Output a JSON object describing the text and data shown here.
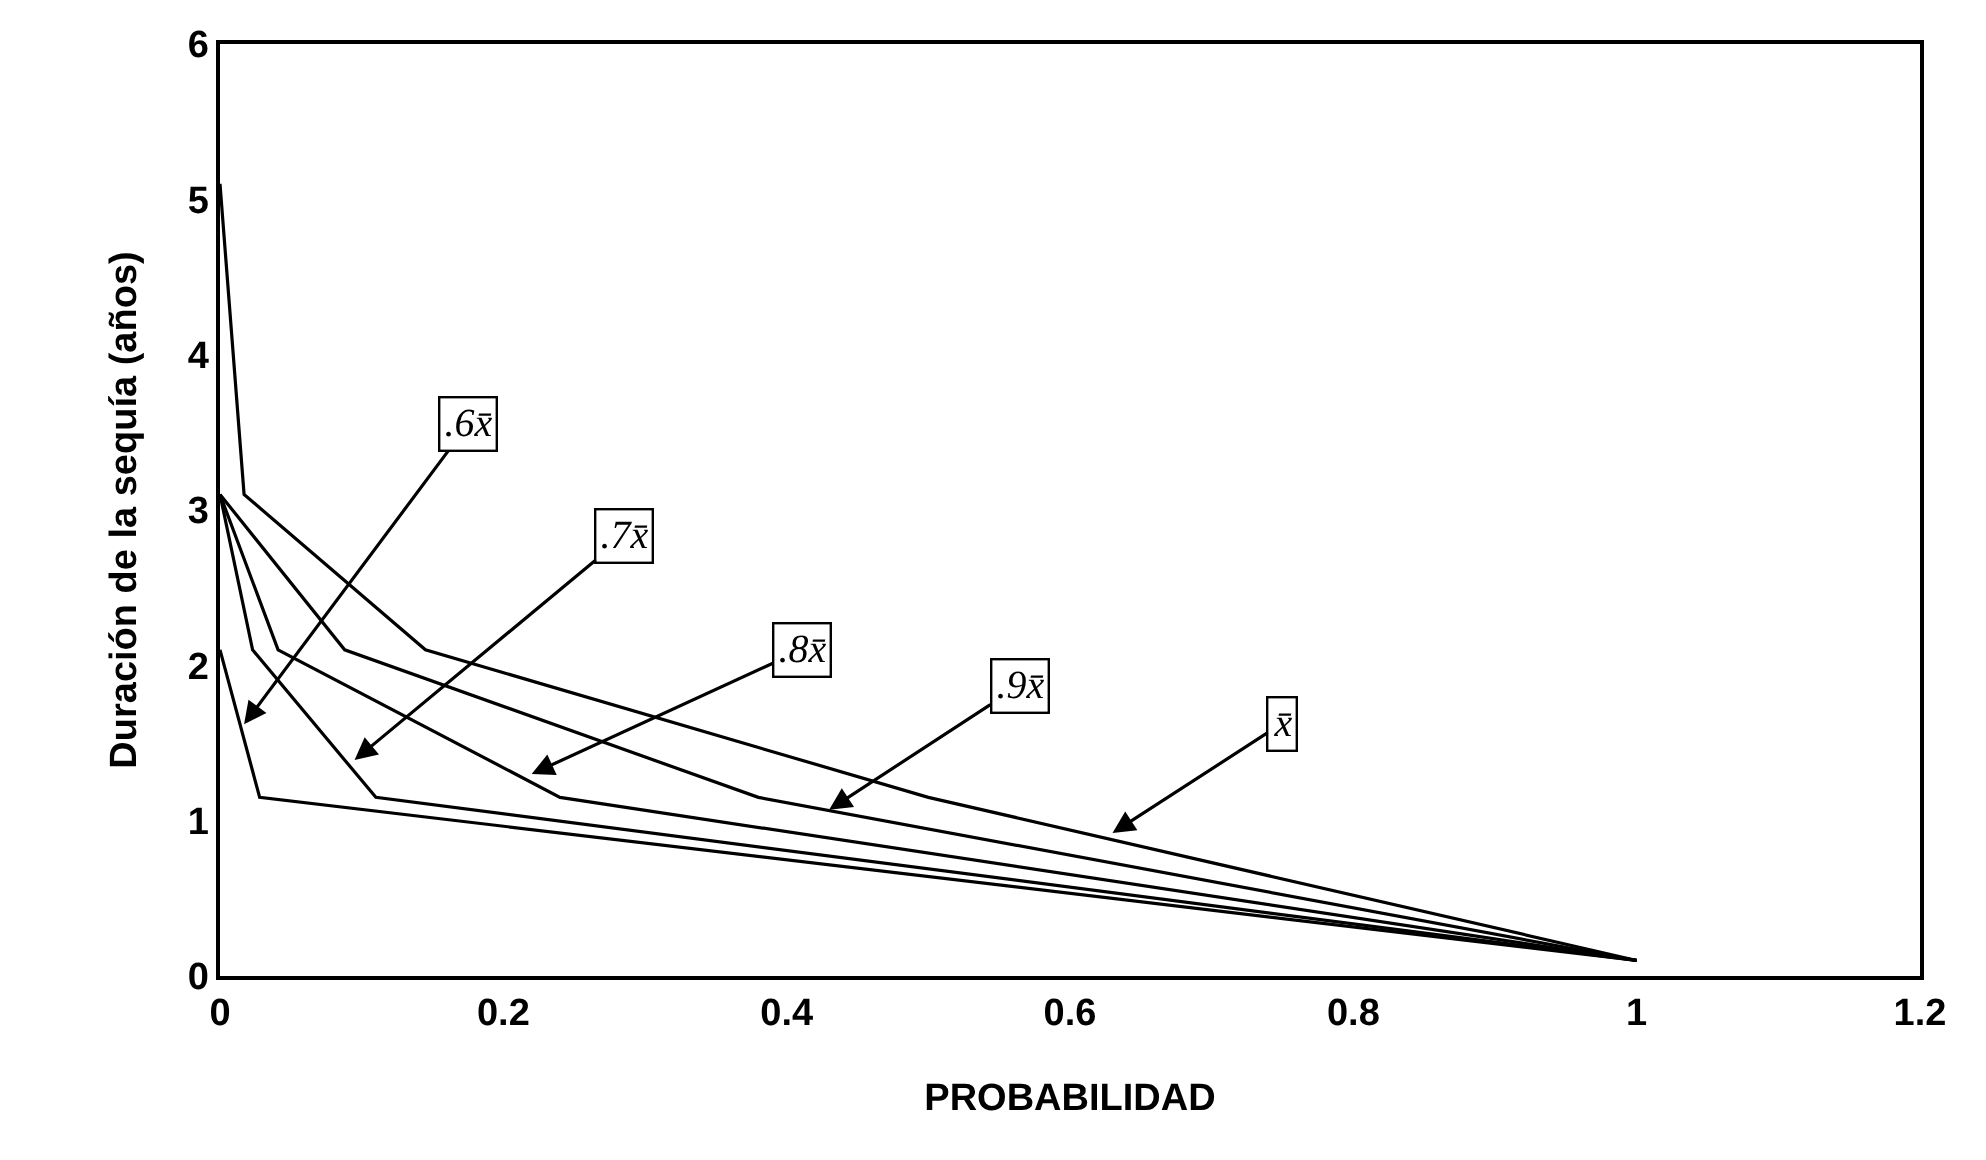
{
  "chart_data": {
    "type": "line",
    "xlabel": "PROBABILIDAD",
    "ylabel": "Duración de la sequía (años)",
    "series": [
      {
        "color": "#000000",
        "x": [
          0,
          0.028,
          1
        ],
        "values": [
          2.1,
          1.15,
          0.1
        ]
      },
      {
        "color": "#000000",
        "x": [
          0,
          0.023,
          0.11,
          1
        ],
        "values": [
          3.1,
          2.1,
          1.15,
          0.1
        ]
      },
      {
        "color": "#000000",
        "x": [
          0,
          0.041,
          0.24,
          1
        ],
        "values": [
          3.1,
          2.1,
          1.15,
          0.1
        ]
      },
      {
        "color": "#000000",
        "x": [
          0,
          0.088,
          0.38,
          1
        ],
        "values": [
          3.1,
          2.1,
          1.15,
          0.1
        ]
      },
      {
        "color": "#000000",
        "x": [
          0,
          0.017,
          0.145,
          0.5,
          1
        ],
        "values": [
          5.1,
          3.1,
          2.1,
          1.15,
          0.1
        ]
      }
    ],
    "annotations": [
      {
        "text": ".6x̄",
        "x": 0.017,
        "y": 1.62
      },
      {
        "text": ".7x̄",
        "x": 0.095,
        "y": 1.39
      },
      {
        "text": ".8x̄",
        "x": 0.22,
        "y": 1.3
      },
      {
        "text": ".9x̄",
        "x": 0.43,
        "y": 1.07
      },
      {
        "text": "x̄",
        "x": 0.63,
        "y": 0.92
      }
    ],
    "xlim": [
      0,
      1.2
    ],
    "xticks": [
      0,
      0.2,
      0.4,
      0.6,
      0.8,
      1,
      1.2
    ],
    "ylim": [
      0,
      6
    ],
    "yticks": [
      0,
      1,
      2,
      3,
      4,
      5,
      6
    ],
    "grid": false,
    "marker": "none",
    "line_style": "solid"
  }
}
